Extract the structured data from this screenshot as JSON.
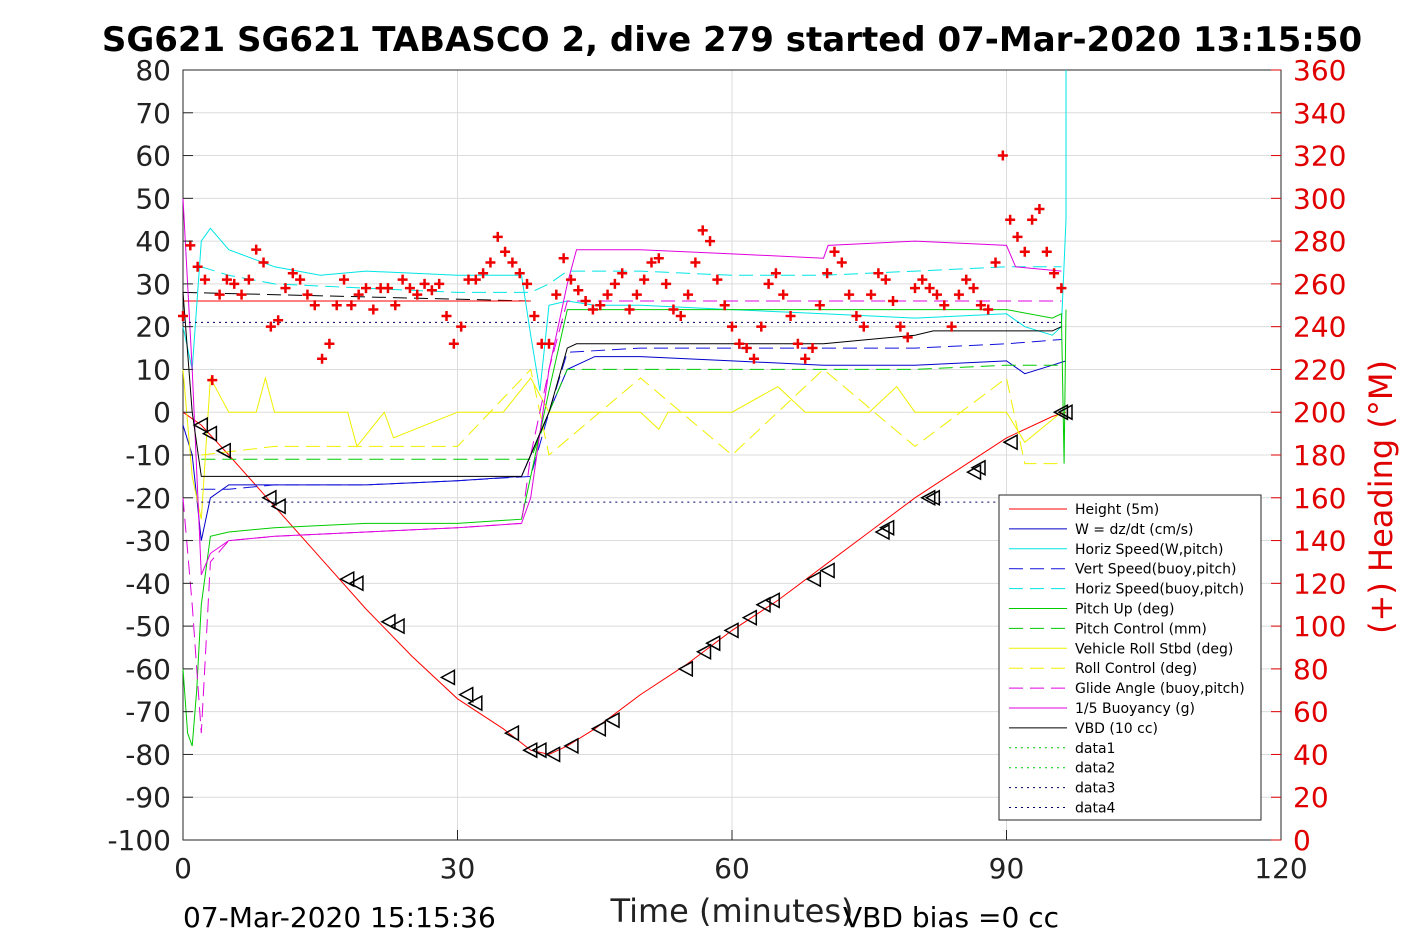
{
  "chart_data": {
    "type": "line",
    "title": "SG621 SG621 TABASCO 2, dive 279 started 07-Mar-2020 13:15:50",
    "xlabel": "Time (minutes)",
    "ylabel": "",
    "ylabel_right": "(+) Heading (°M)",
    "xlim": [
      0,
      120
    ],
    "ylim": [
      -100,
      80
    ],
    "ylim_right": [
      0,
      360
    ],
    "x_ticks": [
      "0",
      "30",
      "60",
      "90",
      "120"
    ],
    "y_ticks": [
      "80",
      "70",
      "60",
      "50",
      "40",
      "30",
      "20",
      "10",
      "0",
      "-10",
      "-20",
      "-30",
      "-40",
      "-50",
      "-60",
      "-70",
      "-80",
      "-90",
      "-100"
    ],
    "y_ticks_right": [
      "360",
      "340",
      "320",
      "300",
      "280",
      "260",
      "240",
      "220",
      "200",
      "180",
      "160",
      "140",
      "120",
      "100",
      "80",
      "60",
      "40",
      "20",
      "0"
    ],
    "grid": true,
    "legend_position": "bottom-right",
    "footer_left": "07-Mar-2020 15:15:36",
    "footer_right": "VBD bias =0 cc",
    "colors": {
      "red": "#ff0000",
      "blue": "#0000cc",
      "cyan": "#00e5e5",
      "green": "#00cc00",
      "yellow": "#f0f000",
      "magenta": "#e000e0",
      "black": "#000000",
      "heading": "#ee0000"
    },
    "series": [
      {
        "name": "Height (5m)",
        "color": "#ff0000",
        "dash": "",
        "width": 1,
        "x": [
          0,
          2,
          5,
          10,
          15,
          20,
          25,
          30,
          35,
          38,
          40,
          42,
          45,
          50,
          55,
          60,
          65,
          70,
          75,
          80,
          85,
          90,
          95,
          96.5
        ],
        "y": [
          0,
          -3,
          -10,
          -22,
          -34,
          -46,
          -57,
          -67,
          -74,
          -79,
          -80,
          -78,
          -74,
          -66,
          -59,
          -51,
          -44,
          -36,
          -28,
          -20,
          -13,
          -6,
          -1,
          0
        ]
      },
      {
        "name": "W = dz/dt (cm/s)",
        "color": "#0000cc",
        "dash": "",
        "width": 1,
        "x": [
          0,
          1,
          2,
          3,
          5,
          10,
          20,
          30,
          37,
          38,
          40,
          42,
          45,
          50,
          60,
          70,
          80,
          90,
          92,
          95,
          96.5
        ],
        "y": [
          -3,
          -10,
          -30,
          -20,
          -17,
          -17,
          -17,
          -16,
          -15,
          -10,
          0,
          10,
          13,
          13,
          12,
          11,
          11,
          12,
          9,
          11,
          12
        ]
      },
      {
        "name": "Horiz Speed(W,pitch)",
        "color": "#00e5e5",
        "dash": "",
        "width": 1,
        "x": [
          0,
          1,
          2,
          3,
          5,
          10,
          15,
          20,
          30,
          37,
          38,
          39,
          40,
          42,
          45,
          50,
          60,
          70,
          80,
          90,
          92,
          95,
          96,
          96.5,
          96.5
        ],
        "y": [
          20,
          10,
          40,
          43,
          38,
          34,
          32,
          33,
          32,
          32,
          18,
          5,
          25,
          26,
          25,
          25,
          24,
          23,
          22,
          23,
          20,
          18,
          20,
          45,
          80
        ]
      },
      {
        "name": "Vert Speed(buoy,pitch)",
        "color": "#1111dd",
        "dash": "14,7",
        "width": 1,
        "x": [
          2,
          5,
          10,
          20,
          30,
          38,
          40,
          42,
          50,
          60,
          70,
          80,
          90,
          96
        ],
        "y": [
          -18,
          -18,
          -17,
          -17,
          -16,
          -15,
          0,
          14,
          15,
          15,
          15,
          15,
          16,
          17
        ]
      },
      {
        "name": "Horiz Speed(buoy,pitch)",
        "color": "#00e5e5",
        "dash": "14,7",
        "width": 1,
        "x": [
          2,
          5,
          10,
          20,
          30,
          38,
          40,
          42,
          50,
          60,
          70,
          80,
          90,
          96
        ],
        "y": [
          34,
          32,
          30,
          29,
          28,
          28,
          30,
          33,
          33,
          32,
          32,
          33,
          34,
          34
        ]
      },
      {
        "name": "Pitch Up (deg)",
        "color": "#00cc00",
        "dash": "",
        "width": 1,
        "x": [
          0,
          0.5,
          1,
          1.5,
          2,
          3,
          5,
          10,
          20,
          30,
          37,
          38,
          40,
          42,
          45,
          50,
          60,
          70,
          80,
          90,
          95,
          96,
          96.3,
          96.5
        ],
        "y": [
          -60,
          -75,
          -78,
          -65,
          -45,
          -29,
          -28,
          -27,
          -26,
          -26,
          -25,
          -15,
          5,
          24,
          24,
          24,
          24,
          24,
          24,
          24,
          22,
          23,
          -12,
          24
        ]
      },
      {
        "name": "Pitch Control (mm)",
        "color": "#00cc00",
        "dash": "14,7",
        "width": 1,
        "x": [
          2,
          5,
          10,
          20,
          30,
          38,
          40,
          42,
          50,
          60,
          70,
          80,
          90,
          96
        ],
        "y": [
          -11,
          -11,
          -11,
          -11,
          -11,
          -11,
          0,
          10,
          10,
          10,
          10,
          10,
          11,
          11
        ]
      },
      {
        "name": "Vehicle Roll Stbd (deg)",
        "color": "#f0f000",
        "dash": "",
        "width": 1,
        "x": [
          0,
          1,
          2,
          3,
          5,
          8,
          9,
          10,
          18,
          19,
          22,
          23,
          30,
          35,
          38,
          40,
          45,
          50,
          52,
          53,
          55,
          60,
          65,
          68,
          70,
          75,
          78,
          80,
          85,
          90,
          92,
          96
        ],
        "y": [
          10,
          -15,
          -25,
          8,
          0,
          0,
          8,
          0,
          0,
          -8,
          0,
          -6,
          0,
          0,
          8,
          0,
          0,
          0,
          -4,
          0,
          0,
          0,
          6,
          0,
          0,
          0,
          6,
          0,
          0,
          0,
          -7,
          0
        ]
      },
      {
        "name": "Roll Control (deg)",
        "color": "#f0f000",
        "dash": "14,7",
        "width": 1,
        "x": [
          2,
          10,
          20,
          30,
          38,
          40,
          50,
          60,
          70,
          80,
          90,
          92,
          96
        ],
        "y": [
          -10,
          -8,
          -8,
          -8,
          10,
          -10,
          8,
          -10,
          10,
          -8,
          8,
          -12,
          -12
        ]
      },
      {
        "name": "Glide Angle (buoy,pitch)",
        "color": "#e000e0",
        "dash": "14,7",
        "width": 1,
        "x": [
          0,
          1,
          2,
          3,
          5,
          10,
          20,
          30,
          37,
          38,
          40,
          42,
          45,
          50,
          60,
          70,
          80,
          90,
          96
        ],
        "y": [
          -20,
          -45,
          -75,
          -35,
          -30,
          -29,
          -28,
          -27,
          -26,
          -10,
          10,
          26,
          26,
          26,
          26,
          26,
          26,
          26,
          26
        ]
      },
      {
        "name": "1/5 Buoyancy (g)",
        "color": "#e000e0",
        "dash": "",
        "width": 1,
        "x": [
          0,
          1,
          2,
          3,
          5,
          10,
          20,
          30,
          37,
          38,
          40,
          42,
          43,
          50,
          60,
          70,
          70.5,
          80,
          90,
          91,
          96
        ],
        "y": [
          50,
          10,
          -38,
          -33,
          -30,
          -29,
          -28,
          -27,
          -26,
          -20,
          10,
          30,
          38,
          38,
          37,
          36,
          39,
          40,
          39,
          34,
          33
        ]
      },
      {
        "name": "VBD (10 cc)",
        "color": "#000000",
        "dash": "",
        "width": 1,
        "x": [
          0,
          1,
          2,
          3,
          10,
          20,
          30,
          37,
          38,
          40,
          42,
          43,
          50,
          60,
          70,
          80,
          82,
          90,
          95,
          96
        ],
        "y": [
          28,
          0,
          -15,
          -15,
          -15,
          -15,
          -15,
          -15,
          -10,
          0,
          15,
          16,
          16,
          16,
          16,
          18,
          19,
          19,
          19,
          20
        ]
      },
      {
        "name": "data1",
        "color": "#00cc00",
        "dash": "2,4",
        "width": 1,
        "x": [],
        "y": []
      },
      {
        "name": "data2",
        "color": "#00cc00",
        "dash": "2,4",
        "width": 1,
        "x": [],
        "y": []
      },
      {
        "name": "data3",
        "color": "#000066",
        "dash": "2,4",
        "width": 1,
        "x": [
          0,
          96
        ],
        "y": [
          21,
          21
        ]
      },
      {
        "name": "data4",
        "color": "#000066",
        "dash": "2,4",
        "width": 1,
        "x": [
          2,
          96
        ],
        "y": [
          -21,
          -21
        ]
      }
    ],
    "extra_lines": [
      {
        "color": "#000000",
        "dash": "14,7",
        "x": [
          0,
          38
        ],
        "y": [
          28,
          26
        ]
      },
      {
        "color": "#ff0000",
        "dash": "",
        "x": [
          0,
          38
        ],
        "y": [
          26,
          26
        ]
      }
    ],
    "depth_markers": {
      "color": "#000000",
      "x": [
        2,
        3,
        4.5,
        9.5,
        10.5,
        18,
        19,
        22.5,
        23.5,
        29,
        31,
        32,
        36,
        38,
        39,
        40.5,
        42.5,
        45.5,
        47,
        55,
        57,
        58,
        60,
        62,
        63.5,
        64.5,
        69,
        70.5,
        76.5,
        77,
        81.5,
        82,
        86.5,
        87,
        90.5,
        96,
        96.5
      ],
      "y": [
        -3,
        -5,
        -9,
        -20,
        -22,
        -39,
        -40,
        -49,
        -50,
        -62,
        -66,
        -68,
        -75,
        -79,
        -79,
        -80,
        -78,
        -74,
        -72,
        -60,
        -56,
        -54,
        -51,
        -48,
        -45,
        -44,
        -39,
        -37,
        -28,
        -27,
        -20,
        -20,
        -14,
        -13,
        -7,
        0,
        0
      ]
    },
    "heading": {
      "name": "(+) Heading (°M)",
      "color": "#ee0000",
      "x": [
        0,
        0.8,
        1.6,
        2.4,
        3.2,
        4.0,
        4.8,
        5.6,
        6.4,
        7.2,
        8.0,
        8.8,
        9.6,
        10.4,
        11.2,
        12.0,
        12.8,
        13.6,
        14.4,
        15.2,
        16.0,
        16.8,
        17.6,
        18.4,
        19.2,
        20.0,
        20.8,
        21.6,
        22.4,
        23.2,
        24.0,
        24.8,
        25.6,
        26.4,
        27.2,
        28.0,
        28.8,
        29.6,
        30.4,
        31.2,
        32.0,
        32.8,
        33.6,
        34.4,
        35.2,
        36.0,
        36.8,
        37.6,
        38.4,
        39.2,
        40.0,
        40.8,
        41.6,
        42.4,
        43.2,
        44.0,
        44.8,
        45.6,
        46.4,
        47.2,
        48.0,
        48.8,
        49.6,
        50.4,
        51.2,
        52.0,
        52.8,
        53.6,
        54.4,
        55.2,
        56.0,
        56.8,
        57.6,
        58.4,
        59.2,
        60.0,
        60.8,
        61.6,
        62.4,
        63.2,
        64.0,
        64.8,
        65.6,
        66.4,
        67.2,
        68.0,
        68.8,
        69.6,
        70.4,
        71.2,
        72.0,
        72.8,
        73.6,
        74.4,
        75.2,
        76.0,
        76.8,
        77.6,
        78.4,
        79.2,
        80.0,
        80.8,
        81.6,
        82.4,
        83.2,
        84.0,
        84.8,
        85.6,
        86.4,
        87.2,
        88.0,
        88.8,
        89.6,
        90.4,
        91.2,
        92.0,
        92.8,
        93.6,
        94.4,
        95.2,
        96.0
      ],
      "y": [
        245,
        278,
        268,
        262,
        215,
        255,
        262,
        260,
        255,
        262,
        276,
        270,
        240,
        243,
        258,
        265,
        262,
        255,
        250,
        225,
        232,
        250,
        262,
        250,
        255,
        258,
        248,
        258,
        258,
        250,
        262,
        258,
        255,
        260,
        257,
        260,
        245,
        232,
        240,
        262,
        262,
        265,
        270,
        282,
        275,
        270,
        265,
        260,
        245,
        232,
        232,
        255,
        272,
        262,
        257,
        252,
        248,
        250,
        255,
        260,
        265,
        248,
        255,
        262,
        270,
        272,
        260,
        248,
        245,
        255,
        270,
        285,
        280,
        262,
        250,
        240,
        232,
        230,
        225,
        240,
        260,
        265,
        255,
        245,
        232,
        225,
        230,
        250,
        265,
        275,
        270,
        255,
        245,
        240,
        255,
        265,
        262,
        252,
        240,
        235,
        258,
        262,
        258,
        255,
        250,
        240,
        255,
        262,
        258,
        250,
        248,
        270,
        320,
        290,
        282,
        275,
        290,
        295,
        275,
        265,
        258
      ]
    }
  }
}
